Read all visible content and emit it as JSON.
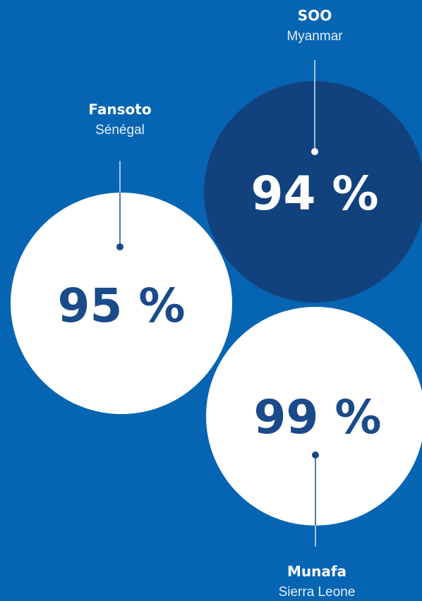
{
  "items": [
    {
      "name": "SOO",
      "country": "Myanmar",
      "value": "94 %"
    },
    {
      "name": "Fansoto",
      "country": "Sénégal",
      "value": "95 %"
    },
    {
      "name": "Munafa",
      "country": "Sierra Leone",
      "value": "99 %"
    }
  ]
}
